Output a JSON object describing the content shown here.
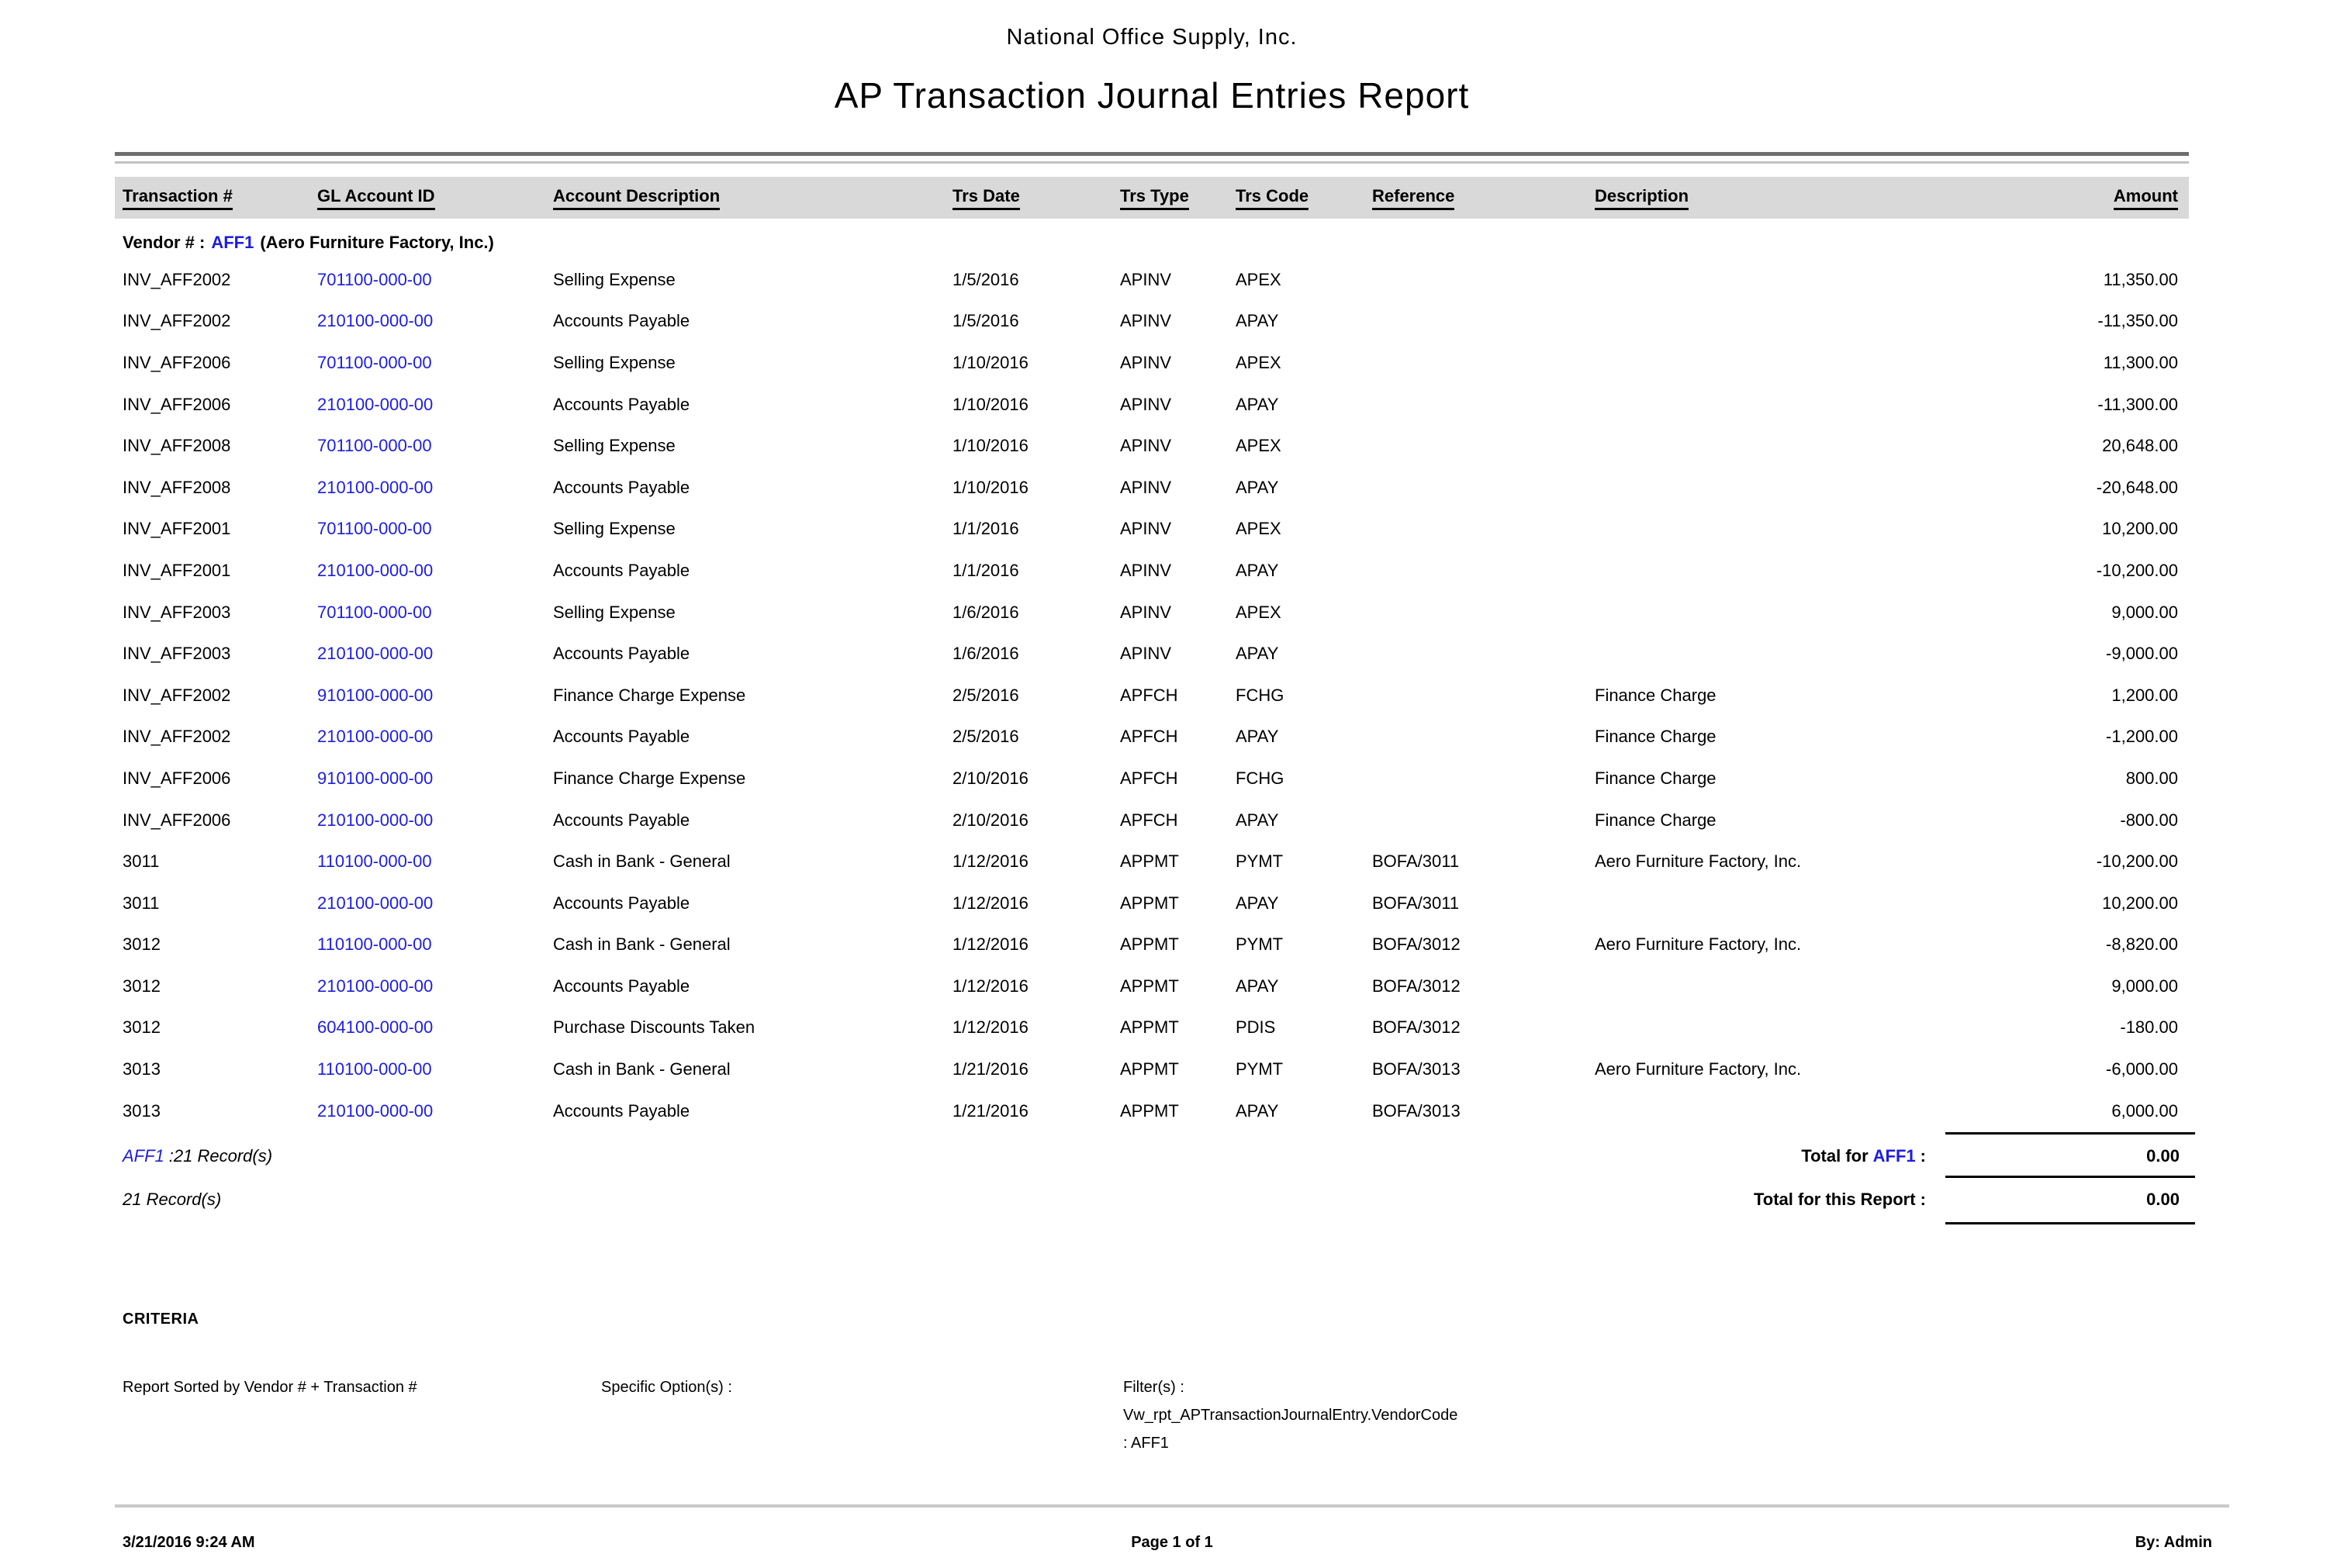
{
  "report": {
    "company": "National Office Supply, Inc.",
    "title": "AP Transaction Journal Entries Report"
  },
  "table": {
    "columns": [
      "Transaction #",
      "GL Account ID",
      "Account Description",
      "Trs Date",
      "Trs Type",
      "Trs Code",
      "Reference",
      "Description",
      "Amount"
    ],
    "vendor_group": {
      "label": "Vendor # :",
      "code": "AFF1",
      "name": "(Aero Furniture Factory, Inc.)"
    },
    "rows": [
      {
        "txn": "INV_AFF2002",
        "gl": "701100-000-00",
        "account": "Selling Expense",
        "date": "1/5/2016",
        "type": "APINV",
        "code": "APEX",
        "ref": "",
        "desc": "",
        "amount": "11,350.00"
      },
      {
        "txn": "INV_AFF2002",
        "gl": "210100-000-00",
        "account": "Accounts Payable",
        "date": "1/5/2016",
        "type": "APINV",
        "code": "APAY",
        "ref": "",
        "desc": "",
        "amount": "-11,350.00"
      },
      {
        "txn": "INV_AFF2006",
        "gl": "701100-000-00",
        "account": "Selling Expense",
        "date": "1/10/2016",
        "type": "APINV",
        "code": "APEX",
        "ref": "",
        "desc": "",
        "amount": "11,300.00"
      },
      {
        "txn": "INV_AFF2006",
        "gl": "210100-000-00",
        "account": "Accounts Payable",
        "date": "1/10/2016",
        "type": "APINV",
        "code": "APAY",
        "ref": "",
        "desc": "",
        "amount": "-11,300.00"
      },
      {
        "txn": "INV_AFF2008",
        "gl": "701100-000-00",
        "account": "Selling Expense",
        "date": "1/10/2016",
        "type": "APINV",
        "code": "APEX",
        "ref": "",
        "desc": "",
        "amount": "20,648.00"
      },
      {
        "txn": "INV_AFF2008",
        "gl": "210100-000-00",
        "account": "Accounts Payable",
        "date": "1/10/2016",
        "type": "APINV",
        "code": "APAY",
        "ref": "",
        "desc": "",
        "amount": "-20,648.00"
      },
      {
        "txn": "INV_AFF2001",
        "gl": "701100-000-00",
        "account": "Selling Expense",
        "date": "1/1/2016",
        "type": "APINV",
        "code": "APEX",
        "ref": "",
        "desc": "",
        "amount": "10,200.00"
      },
      {
        "txn": "INV_AFF2001",
        "gl": "210100-000-00",
        "account": "Accounts Payable",
        "date": "1/1/2016",
        "type": "APINV",
        "code": "APAY",
        "ref": "",
        "desc": "",
        "amount": "-10,200.00"
      },
      {
        "txn": "INV_AFF2003",
        "gl": "701100-000-00",
        "account": "Selling Expense",
        "date": "1/6/2016",
        "type": "APINV",
        "code": "APEX",
        "ref": "",
        "desc": "",
        "amount": "9,000.00"
      },
      {
        "txn": "INV_AFF2003",
        "gl": "210100-000-00",
        "account": "Accounts Payable",
        "date": "1/6/2016",
        "type": "APINV",
        "code": "APAY",
        "ref": "",
        "desc": "",
        "amount": "-9,000.00"
      },
      {
        "txn": "INV_AFF2002",
        "gl": "910100-000-00",
        "account": "Finance Charge Expense",
        "date": "2/5/2016",
        "type": "APFCH",
        "code": "FCHG",
        "ref": "",
        "desc": "Finance Charge",
        "amount": "1,200.00"
      },
      {
        "txn": "INV_AFF2002",
        "gl": "210100-000-00",
        "account": "Accounts Payable",
        "date": "2/5/2016",
        "type": "APFCH",
        "code": "APAY",
        "ref": "",
        "desc": "Finance Charge",
        "amount": "-1,200.00"
      },
      {
        "txn": "INV_AFF2006",
        "gl": "910100-000-00",
        "account": "Finance Charge Expense",
        "date": "2/10/2016",
        "type": "APFCH",
        "code": "FCHG",
        "ref": "",
        "desc": "Finance Charge",
        "amount": "800.00"
      },
      {
        "txn": "INV_AFF2006",
        "gl": "210100-000-00",
        "account": "Accounts Payable",
        "date": "2/10/2016",
        "type": "APFCH",
        "code": "APAY",
        "ref": "",
        "desc": "Finance Charge",
        "amount": "-800.00"
      },
      {
        "txn": "3011",
        "gl": "110100-000-00",
        "account": "Cash in Bank - General",
        "date": "1/12/2016",
        "type": "APPMT",
        "code": "PYMT",
        "ref": "BOFA/3011",
        "desc": "Aero Furniture Factory, Inc.",
        "amount": "-10,200.00"
      },
      {
        "txn": "3011",
        "gl": "210100-000-00",
        "account": "Accounts Payable",
        "date": "1/12/2016",
        "type": "APPMT",
        "code": "APAY",
        "ref": "BOFA/3011",
        "desc": "",
        "amount": "10,200.00"
      },
      {
        "txn": "3012",
        "gl": "110100-000-00",
        "account": "Cash in Bank - General",
        "date": "1/12/2016",
        "type": "APPMT",
        "code": "PYMT",
        "ref": "BOFA/3012",
        "desc": "Aero Furniture Factory, Inc.",
        "amount": "-8,820.00"
      },
      {
        "txn": "3012",
        "gl": "210100-000-00",
        "account": "Accounts Payable",
        "date": "1/12/2016",
        "type": "APPMT",
        "code": "APAY",
        "ref": "BOFA/3012",
        "desc": "",
        "amount": "9,000.00"
      },
      {
        "txn": "3012",
        "gl": "604100-000-00",
        "account": "Purchase Discounts Taken",
        "date": "1/12/2016",
        "type": "APPMT",
        "code": "PDIS",
        "ref": "BOFA/3012",
        "desc": "",
        "amount": "-180.00"
      },
      {
        "txn": "3013",
        "gl": "110100-000-00",
        "account": "Cash in Bank - General",
        "date": "1/21/2016",
        "type": "APPMT",
        "code": "PYMT",
        "ref": "BOFA/3013",
        "desc": "Aero Furniture Factory, Inc.",
        "amount": "-6,000.00"
      },
      {
        "txn": "3013",
        "gl": "210100-000-00",
        "account": "Accounts Payable",
        "date": "1/21/2016",
        "type": "APPMT",
        "code": "APAY",
        "ref": "BOFA/3013",
        "desc": "",
        "amount": "6,000.00"
      }
    ]
  },
  "summary": {
    "group_records_code": "AFF1",
    "group_records_text": ":21 Record(s)",
    "report_records_text": "21 Record(s)",
    "group_total_prefix": "Total for",
    "group_total_code": "AFF1",
    "group_total_suffix": ":",
    "group_total_value": "0.00",
    "report_total_label": "Total for this Report :",
    "report_total_value": "0.00"
  },
  "criteria": {
    "heading": "CRITERIA",
    "sorted_by": "Report Sorted by Vendor # + Transaction #",
    "specific_options_label": "Specific Option(s) :",
    "filters_label": "Filter(s) :",
    "filter_line_1": "Vw_rpt_APTransactionJournalEntry.VendorCode",
    "filter_line_2": ": AFF1"
  },
  "footer": {
    "generated": "3/21/2016 9:24 AM",
    "page": "Page 1 of 1",
    "by": "By: Admin"
  },
  "colors": {
    "link_blue": "#1d1de0",
    "header_band": "#d9d9d9"
  }
}
